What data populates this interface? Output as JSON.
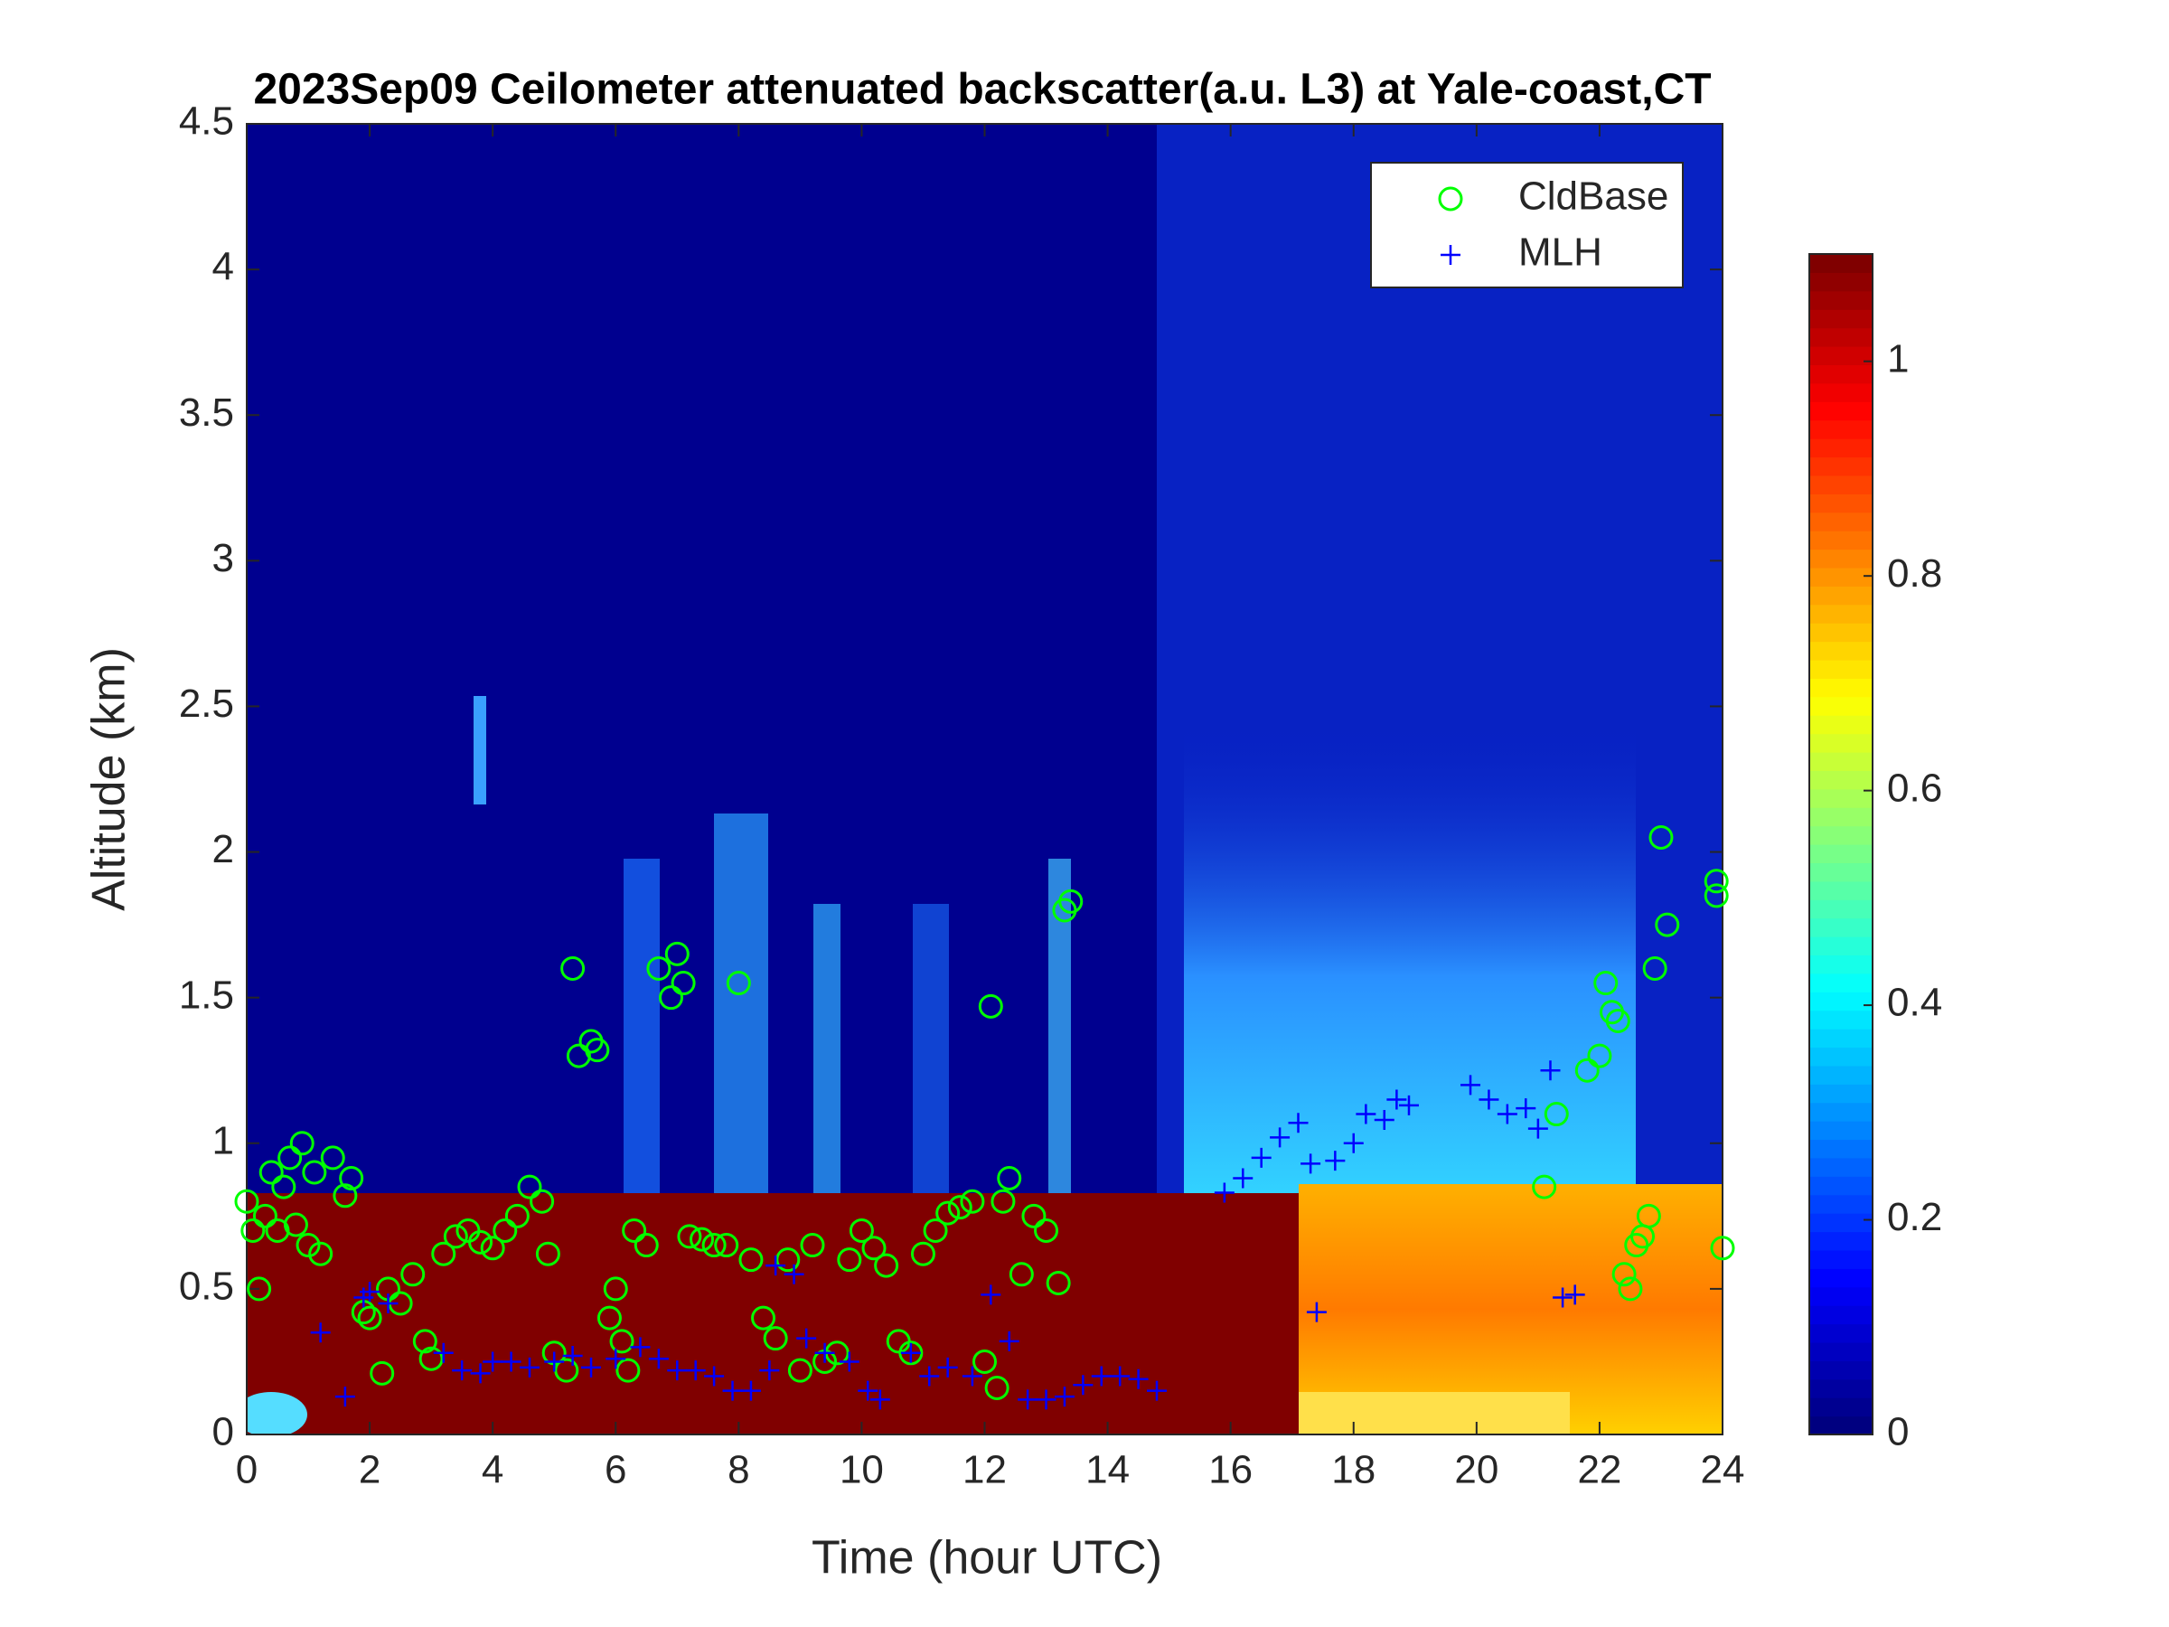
{
  "chart_data": {
    "type": "scatter",
    "title": "2023Sep09 Ceilometer attenuated backscatter(a.u. L3) at Yale-coast,CT",
    "x_label": "Time (hour UTC)",
    "y_label": "Altitude (km)",
    "xlim": [
      0,
      24
    ],
    "xticks": [
      0,
      2,
      4,
      6,
      8,
      10,
      12,
      14,
      16,
      18,
      20,
      22,
      24
    ],
    "ylim": [
      0,
      4.5
    ],
    "yticks": [
      0,
      0.5,
      1,
      1.5,
      2,
      2.5,
      3,
      3.5,
      4,
      4.5
    ],
    "legend": "upper right",
    "colorbar": {
      "colormap": "jet",
      "lim": [
        0,
        1.1
      ],
      "ticks": [
        0,
        0.2,
        0.4,
        0.6,
        0.8,
        1
      ]
    },
    "series": [
      {
        "name": "CldBase",
        "color": "#00ff00",
        "marker": "circle",
        "x": [
          0.0,
          0.1,
          0.2,
          0.3,
          0.4,
          0.5,
          0.6,
          0.7,
          0.8,
          0.9,
          1.0,
          1.1,
          1.2,
          1.4,
          1.6,
          1.7,
          1.9,
          2.0,
          2.2,
          2.3,
          2.5,
          2.7,
          2.9,
          3.0,
          3.2,
          3.4,
          3.6,
          3.8,
          4.0,
          4.2,
          4.4,
          4.6,
          4.8,
          4.9,
          5.0,
          5.2,
          5.3,
          5.4,
          5.6,
          5.7,
          5.9,
          6.0,
          6.1,
          6.2,
          6.3,
          6.5,
          6.7,
          6.9,
          7.0,
          7.1,
          7.2,
          7.4,
          7.6,
          7.8,
          8.0,
          8.2,
          8.4,
          8.6,
          8.8,
          9.0,
          9.2,
          9.4,
          9.6,
          9.8,
          10.0,
          10.2,
          10.4,
          10.6,
          10.8,
          11.0,
          11.2,
          11.4,
          11.6,
          11.8,
          12.0,
          12.1,
          12.2,
          12.3,
          12.4,
          12.6,
          12.8,
          13.0,
          13.2,
          13.3,
          13.4,
          21.1,
          21.3,
          21.8,
          22.0,
          22.1,
          22.2,
          22.3,
          22.4,
          22.5,
          22.6,
          22.7,
          22.8,
          22.9,
          23.0,
          23.1,
          24.0,
          23.9,
          23.9
        ],
        "values": [
          0.8,
          0.7,
          0.5,
          0.75,
          0.9,
          0.7,
          0.85,
          0.95,
          0.72,
          1.0,
          0.65,
          0.9,
          0.62,
          0.95,
          0.82,
          0.88,
          0.42,
          0.4,
          0.21,
          0.5,
          0.45,
          0.55,
          0.32,
          0.26,
          0.62,
          0.68,
          0.7,
          0.66,
          0.64,
          0.7,
          0.75,
          0.85,
          0.8,
          0.62,
          0.28,
          0.22,
          1.6,
          1.3,
          1.35,
          1.32,
          0.4,
          0.5,
          0.32,
          0.22,
          0.7,
          0.65,
          1.6,
          1.5,
          1.65,
          1.55,
          0.68,
          0.67,
          0.65,
          0.65,
          1.55,
          0.6,
          0.4,
          0.33,
          0.6,
          0.22,
          0.65,
          0.25,
          0.28,
          0.6,
          0.7,
          0.64,
          0.58,
          0.32,
          0.28,
          0.62,
          0.7,
          0.76,
          0.78,
          0.8,
          0.25,
          1.47,
          0.16,
          0.8,
          0.88,
          0.55,
          0.75,
          0.7,
          0.52,
          1.8,
          1.83,
          0.85,
          1.1,
          1.25,
          1.3,
          1.55,
          1.45,
          1.42,
          0.55,
          0.5,
          0.65,
          0.68,
          0.75,
          1.6,
          2.05,
          1.75,
          0.64,
          1.85,
          1.9
        ]
      },
      {
        "name": "MLH",
        "color": "#0000ff",
        "marker": "plus",
        "x": [
          1.2,
          1.6,
          1.9,
          2.0,
          2.3,
          3.2,
          3.5,
          3.8,
          4.0,
          4.3,
          4.6,
          5.0,
          5.3,
          5.6,
          6.0,
          6.4,
          6.7,
          7.0,
          7.3,
          7.6,
          7.9,
          8.2,
          8.5,
          8.6,
          8.9,
          9.1,
          9.4,
          9.8,
          10.1,
          10.3,
          10.8,
          11.1,
          11.4,
          11.8,
          12.1,
          12.4,
          12.7,
          13.0,
          13.3,
          13.6,
          13.9,
          14.2,
          14.5,
          14.8,
          15.9,
          16.2,
          16.5,
          16.8,
          17.1,
          17.4,
          17.3,
          17.7,
          18.0,
          18.2,
          18.5,
          18.7,
          18.9,
          19.9,
          20.2,
          20.5,
          20.8,
          21.0,
          21.2,
          21.4,
          21.6
        ],
        "values": [
          0.35,
          0.13,
          0.47,
          0.49,
          0.45,
          0.28,
          0.22,
          0.21,
          0.25,
          0.25,
          0.23,
          0.25,
          0.27,
          0.23,
          0.26,
          0.3,
          0.26,
          0.22,
          0.22,
          0.2,
          0.15,
          0.15,
          0.22,
          0.58,
          0.55,
          0.33,
          0.28,
          0.25,
          0.15,
          0.12,
          0.28,
          0.2,
          0.23,
          0.2,
          0.48,
          0.32,
          0.12,
          0.12,
          0.13,
          0.17,
          0.2,
          0.2,
          0.19,
          0.15,
          0.83,
          0.88,
          0.95,
          1.02,
          1.07,
          0.42,
          0.93,
          0.94,
          1.0,
          1.1,
          1.08,
          1.15,
          1.13,
          1.2,
          1.15,
          1.1,
          1.12,
          1.05,
          1.25,
          0.47,
          0.48
        ]
      }
    ]
  }
}
